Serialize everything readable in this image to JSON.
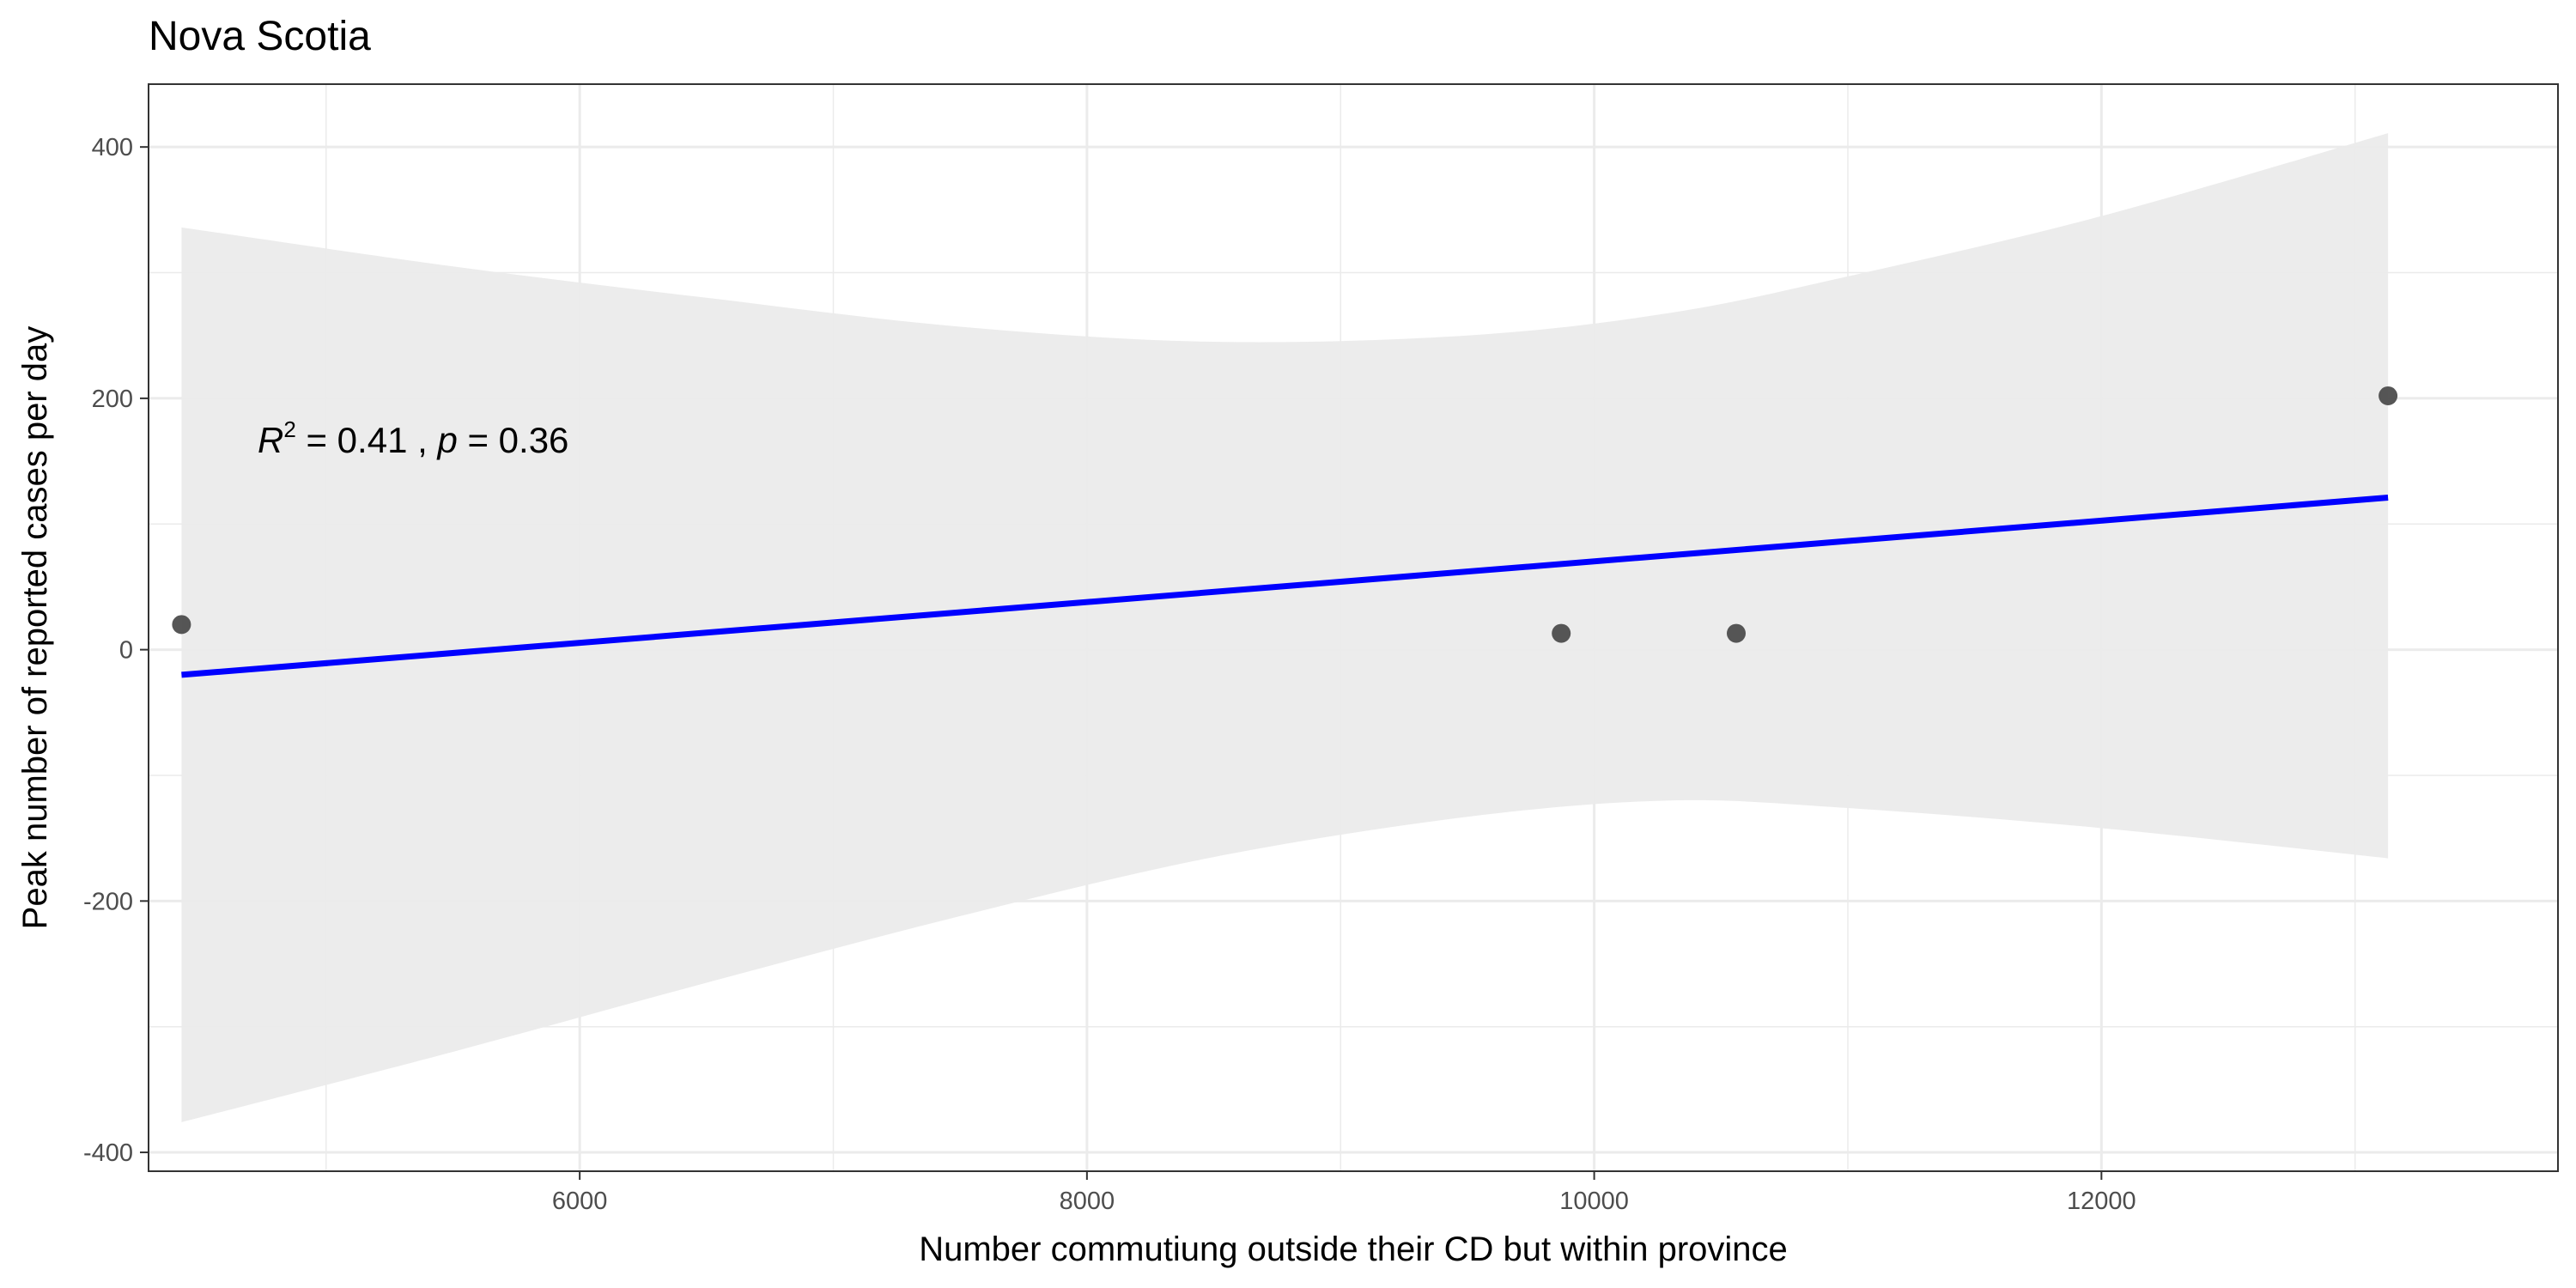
{
  "chart_data": {
    "type": "scatter",
    "title": "Nova Scotia",
    "xlabel": "Number commutiung outside their CD but within province",
    "ylabel": "Peak number of reported cases per day",
    "xlim": [
      4300,
      13800
    ],
    "ylim": [
      -415,
      450
    ],
    "x_ticks": [
      6000,
      8000,
      10000,
      12000
    ],
    "y_ticks": [
      -400,
      -200,
      0,
      200,
      400
    ],
    "grid": true,
    "points": [
      {
        "x": 4430,
        "y": 20
      },
      {
        "x": 9870,
        "y": 13
      },
      {
        "x": 10560,
        "y": 13
      },
      {
        "x": 13130,
        "y": 202
      }
    ],
    "fit_line": {
      "x": [
        4430,
        13130
      ],
      "y": [
        -20,
        121
      ],
      "color": "#0000ff"
    },
    "confidence_band": {
      "x": [
        4430,
        5500,
        6500,
        7500,
        8500,
        9500,
        10300,
        11000,
        12000,
        13130
      ],
      "upper": [
        336,
        305,
        280,
        257,
        245,
        250,
        268,
        297,
        345,
        411
      ],
      "lower": [
        -376,
        -320,
        -265,
        -212,
        -165,
        -133,
        -120,
        -126,
        -142,
        -166
      ],
      "color": "#ebebeb"
    },
    "annotation": {
      "r2_label": "R",
      "r2_exp": "2",
      "r2_value": " = 0.41 , ",
      "p_label": "p",
      "p_value": " = 0.36"
    }
  }
}
